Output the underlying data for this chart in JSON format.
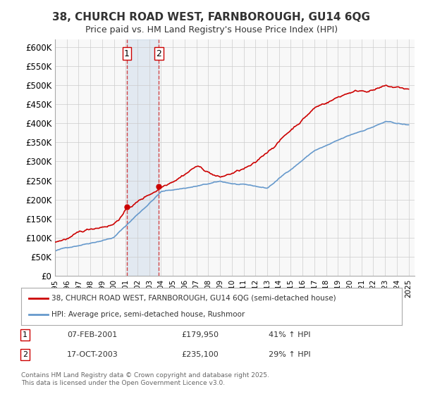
{
  "title1": "38, CHURCH ROAD WEST, FARNBOROUGH, GU14 6QG",
  "title2": "Price paid vs. HM Land Registry's House Price Index (HPI)",
  "ylabel_ticks": [
    "£0",
    "£50K",
    "£100K",
    "£150K",
    "£200K",
    "£250K",
    "£300K",
    "£350K",
    "£400K",
    "£450K",
    "£500K",
    "£550K",
    "£600K"
  ],
  "ytick_vals": [
    0,
    50000,
    100000,
    150000,
    200000,
    250000,
    300000,
    350000,
    400000,
    450000,
    500000,
    550000,
    600000
  ],
  "xlim_start": 1995.0,
  "xlim_end": 2025.5,
  "ylim_min": 0,
  "ylim_max": 620000,
  "transaction1_date": 2001.1,
  "transaction1_price": 179950,
  "transaction2_date": 2003.8,
  "transaction2_price": 235100,
  "legend_line1": "38, CHURCH ROAD WEST, FARNBOROUGH, GU14 6QG (semi-detached house)",
  "legend_line2": "HPI: Average price, semi-detached house, Rushmoor",
  "annotation1_label": "1",
  "annotation1_date": "07-FEB-2001",
  "annotation1_price": "£179,950",
  "annotation1_hpi": "41% ↑ HPI",
  "annotation2_label": "2",
  "annotation2_date": "17-OCT-2003",
  "annotation2_price": "£235,100",
  "annotation2_hpi": "29% ↑ HPI",
  "footer": "Contains HM Land Registry data © Crown copyright and database right 2025.\nThis data is licensed under the Open Government Licence v3.0.",
  "line_color_price": "#cc0000",
  "line_color_hpi": "#6699cc",
  "bg_color": "#f8f8f8",
  "grid_color": "#cccccc"
}
